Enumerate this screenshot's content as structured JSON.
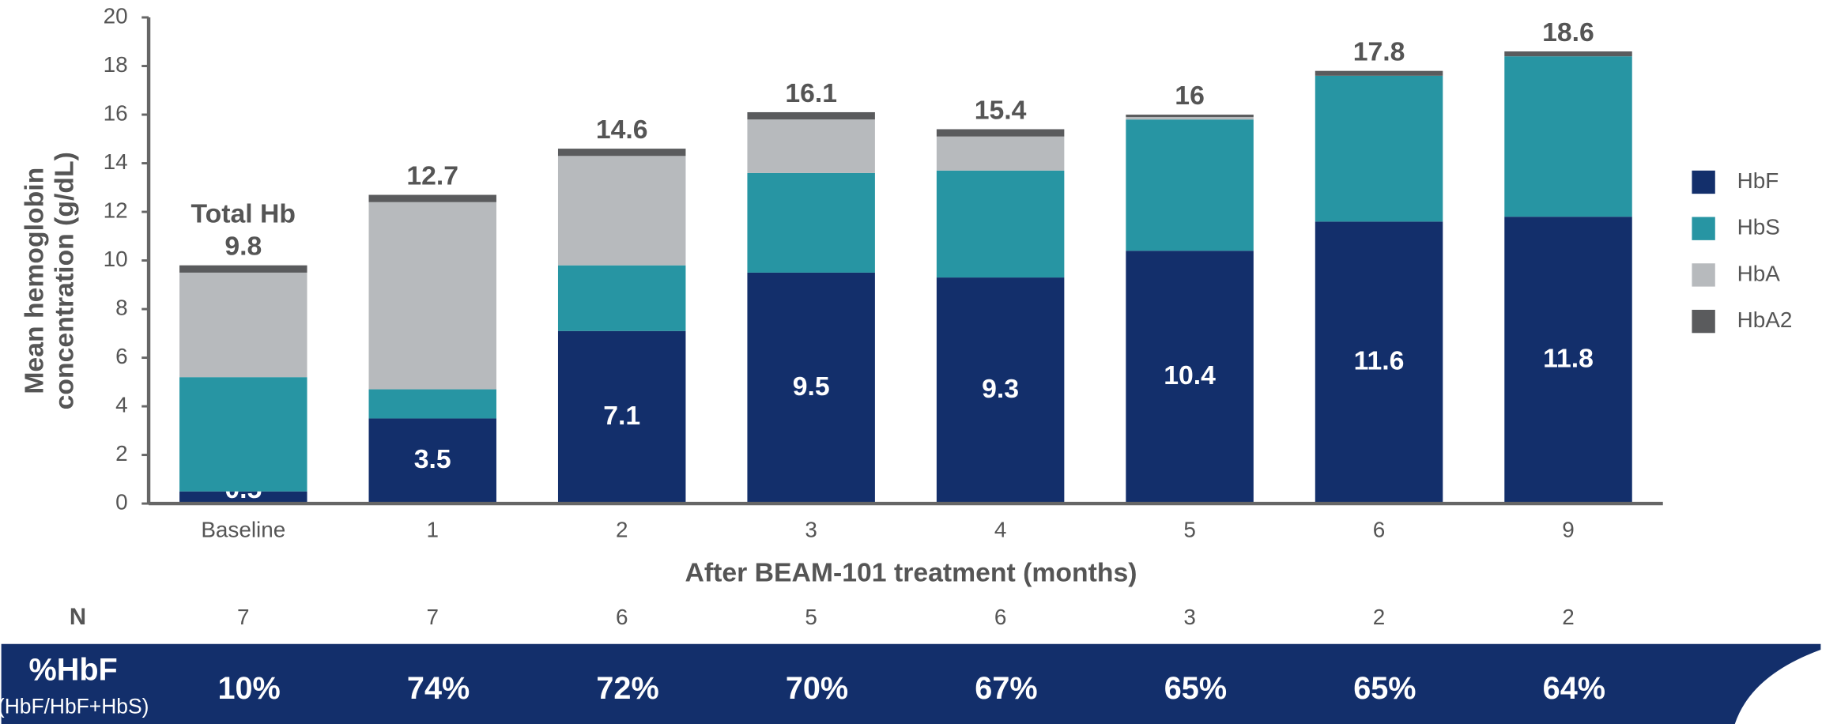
{
  "chart_data": {
    "type": "stacked_bar",
    "y_label": [
      "Mean hemoglobin",
      "concentration (g/dL)"
    ],
    "x_label": "After BEAM-101 treatment (months)",
    "categories": [
      "Baseline",
      "1",
      "2",
      "3",
      "4",
      "5",
      "6",
      "9"
    ],
    "series": [
      {
        "name": "HbF",
        "color": "#132f6b",
        "values": [
          0.5,
          3.5,
          7.1,
          9.5,
          9.3,
          10.4,
          11.6,
          11.8
        ]
      },
      {
        "name": "HbS",
        "color": "#2795a3",
        "values": [
          4.7,
          1.2,
          2.7,
          4.1,
          4.4,
          5.4,
          6.0,
          6.6
        ]
      },
      {
        "name": "HbA",
        "color": "#b7babd",
        "values": [
          4.3,
          7.7,
          4.5,
          2.2,
          1.4,
          0.1,
          0,
          0
        ]
      },
      {
        "name": "HbA2",
        "color": "#5a5b5d",
        "values": [
          0.3,
          0.3,
          0.3,
          0.3,
          0.3,
          0.1,
          0.2,
          0.2
        ]
      }
    ],
    "total_label": "Total Hb",
    "totals": [
      9.8,
      12.7,
      14.6,
      16.1,
      15.4,
      16.0,
      17.8,
      18.6
    ],
    "ylim": [
      0,
      20
    ],
    "yticks": [
      0,
      2,
      4,
      6,
      8,
      10,
      12,
      14,
      16,
      18,
      20
    ],
    "legend": "right",
    "n_row": {
      "label": "N",
      "values": [
        7,
        7,
        6,
        5,
        6,
        3,
        2,
        2
      ]
    },
    "hbf_row": {
      "label": "%HbF",
      "sublabel": "(HbF/HbF+HbS)",
      "values": [
        "10%",
        "74%",
        "72%",
        "70%",
        "67%",
        "65%",
        "65%",
        "64%"
      ]
    }
  }
}
